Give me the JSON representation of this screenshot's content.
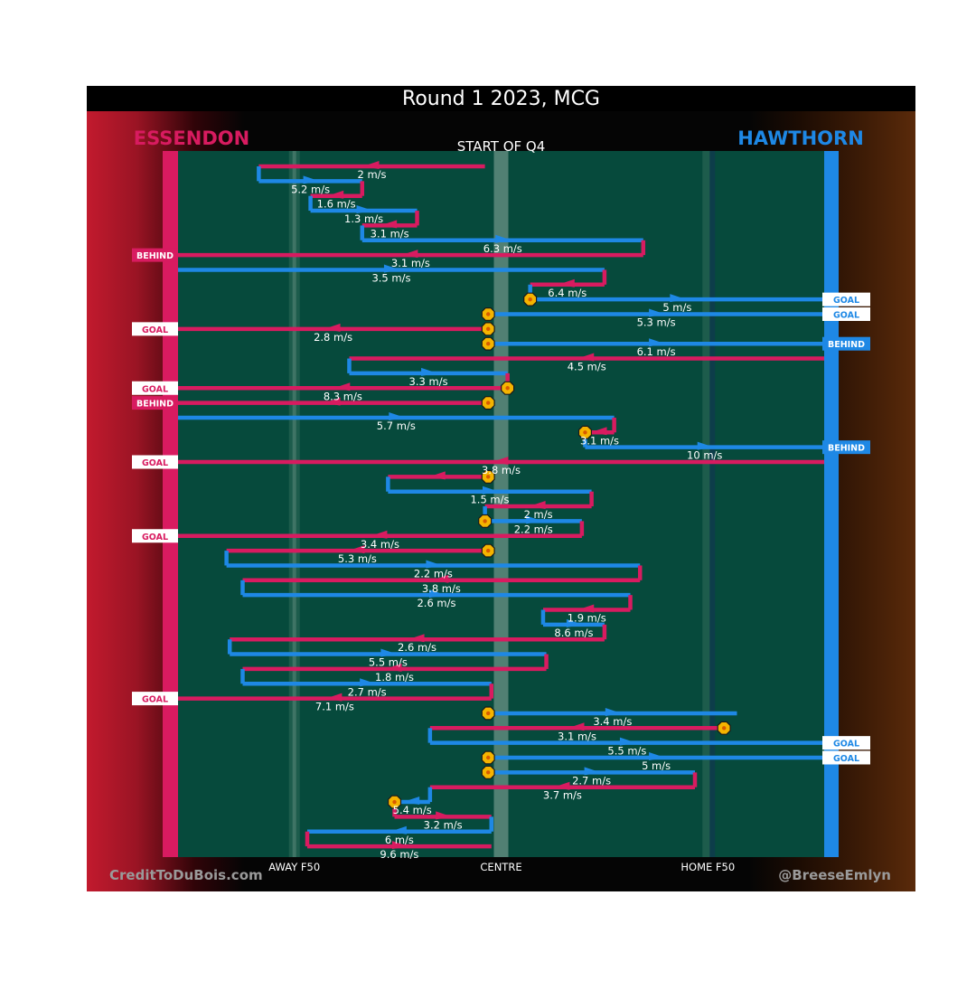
{
  "chart_data": {
    "type": "line",
    "title": "Round 1 2023, MCG",
    "subtitle": "START OF Q4",
    "teams": {
      "left": {
        "name": "ESSENDON",
        "color": "#d81b60"
      },
      "right": {
        "name": "HAWTHORN",
        "color": "#1e88e5"
      }
    },
    "x_tick_labels": [
      "AWAY F50",
      "CENTRE",
      "HOME F50"
    ],
    "x_ticks": [
      18,
      50,
      82
    ],
    "footer_left": "CreditToDuBois.com",
    "footer_right": "@BreeseEmlyn",
    "colors": {
      "pitch": "#064a3c",
      "essendon": "#d81b60",
      "hawthorn": "#1e88e5",
      "bounce": "#f5b400"
    },
    "chains": [
      {
        "team": "ESS",
        "start": 47.5,
        "end": 12.5,
        "label": "2 m/s"
      },
      {
        "team": "HAW",
        "start": 12.5,
        "end": 28.5,
        "label": "5.2 m/s"
      },
      {
        "team": "ESS",
        "start": 28.5,
        "end": 20.5,
        "label": "1.6 m/s"
      },
      {
        "team": "HAW",
        "start": 20.5,
        "end": 37,
        "label": "1.3 m/s"
      },
      {
        "team": "ESS",
        "start": 37,
        "end": 28.5,
        "label": "3.1 m/s"
      },
      {
        "team": "HAW",
        "start": 28.5,
        "end": 72,
        "label": "6.3 m/s"
      },
      {
        "team": "ESS",
        "start": 72,
        "end": 0,
        "label": "3.1 m/s",
        "outcome": "BEHIND"
      },
      {
        "team": "HAW",
        "start": 0,
        "end": 66,
        "label": "3.5 m/s"
      },
      {
        "team": "ESS",
        "start": 66,
        "end": 54.5,
        "label": "6.4 m/s"
      },
      {
        "team": "HAW",
        "start": 54.5,
        "end": 100,
        "label": "5 m/s",
        "outcome": "GOAL",
        "bounce": "start"
      },
      {
        "team": "HAW",
        "start": 48,
        "end": 100,
        "label": "5.3 m/s",
        "outcome": "GOAL",
        "bounce": "start"
      },
      {
        "team": "ESS",
        "start": 48,
        "end": 0,
        "label": "2.8 m/s",
        "outcome": "GOAL",
        "bounce": "start"
      },
      {
        "team": "HAW",
        "start": 48,
        "end": 100,
        "label": "6.1 m/s",
        "outcome": "BEHIND",
        "bounce": "start"
      },
      {
        "team": "ESS",
        "start": 100,
        "end": 26.5,
        "label": "4.5 m/s"
      },
      {
        "team": "HAW",
        "start": 26.5,
        "end": 51,
        "label": "3.3 m/s"
      },
      {
        "team": "ESS",
        "start": 51,
        "end": 0,
        "label": "8.3 m/s",
        "outcome": "GOAL",
        "bounce": "start"
      },
      {
        "team": "ESS",
        "start": 48,
        "end": 0,
        "label": "",
        "outcome": "BEHIND",
        "bounce": "start"
      },
      {
        "team": "HAW",
        "start": 0,
        "end": 67.5,
        "label": "5.7 m/s"
      },
      {
        "team": "ESS",
        "start": 67.5,
        "end": 63,
        "label": "3.1 m/s",
        "bounce": "end"
      },
      {
        "team": "HAW",
        "start": 63,
        "end": 100,
        "label": "10 m/s",
        "outcome": "BEHIND"
      },
      {
        "team": "ESS",
        "start": 100,
        "end": 0,
        "label": "3.8 m/s",
        "outcome": "GOAL"
      },
      {
        "team": "ESS",
        "start": 48,
        "end": 32.5,
        "label": "",
        "bounce": "start"
      },
      {
        "team": "HAW",
        "start": 32.5,
        "end": 64,
        "label": "1.5 m/s"
      },
      {
        "team": "ESS",
        "start": 64,
        "end": 47.5,
        "label": "2 m/s"
      },
      {
        "team": "HAW",
        "start": 47.5,
        "end": 62.5,
        "label": "2.2 m/s",
        "bounce": "start"
      },
      {
        "team": "ESS",
        "start": 62.5,
        "end": 0,
        "label": "3.4 m/s",
        "outcome": "GOAL"
      },
      {
        "team": "ESS",
        "start": 48,
        "end": 7.5,
        "label": "5.3 m/s",
        "bounce": "start"
      },
      {
        "team": "HAW",
        "start": 7.5,
        "end": 71.5,
        "label": "2.2 m/s"
      },
      {
        "team": "ESS",
        "start": 71.5,
        "end": 10,
        "label": "3.8 m/s"
      },
      {
        "team": "HAW",
        "start": 10,
        "end": 70,
        "label": "2.6 m/s"
      },
      {
        "team": "ESS",
        "start": 70,
        "end": 56.5,
        "label": "1.9 m/s"
      },
      {
        "team": "HAW",
        "start": 56.5,
        "end": 66,
        "label": "8.6 m/s"
      },
      {
        "team": "ESS",
        "start": 66,
        "end": 8,
        "label": "2.6 m/s"
      },
      {
        "team": "HAW",
        "start": 8,
        "end": 57,
        "label": "5.5 m/s"
      },
      {
        "team": "ESS",
        "start": 57,
        "end": 10,
        "label": "1.8 m/s"
      },
      {
        "team": "HAW",
        "start": 10,
        "end": 48.5,
        "label": "2.7 m/s"
      },
      {
        "team": "ESS",
        "start": 48.5,
        "end": 0,
        "label": "7.1 m/s",
        "outcome": "GOAL"
      },
      {
        "team": "HAW",
        "start": 48,
        "end": 86.5,
        "label": "3.4 m/s",
        "bounce": "start"
      },
      {
        "team": "ESS",
        "start": 84.5,
        "end": 39,
        "label": "3.1 m/s",
        "bounce": "start"
      },
      {
        "team": "HAW",
        "start": 39,
        "end": 100,
        "label": "5.5 m/s",
        "outcome": "GOAL"
      },
      {
        "team": "HAW",
        "start": 48,
        "end": 100,
        "label": "5 m/s",
        "outcome": "GOAL",
        "bounce": "start"
      },
      {
        "team": "HAW",
        "start": 48,
        "end": 80,
        "label": "2.7 m/s",
        "bounce": "start"
      },
      {
        "team": "ESS",
        "start": 80,
        "end": 39,
        "label": "3.7 m/s"
      },
      {
        "team": "HAW",
        "start": 39,
        "end": 33.5,
        "label": "5.4 m/s",
        "bounce": "end"
      },
      {
        "team": "ESS",
        "start": 33.5,
        "end": 48.5,
        "label": "3.2 m/s"
      },
      {
        "team": "HAW",
        "start": 48.5,
        "end": 20,
        "label": "6 m/s"
      },
      {
        "team": "ESS",
        "start": 20,
        "end": 20,
        "label": "9.6 m/s"
      }
    ]
  }
}
